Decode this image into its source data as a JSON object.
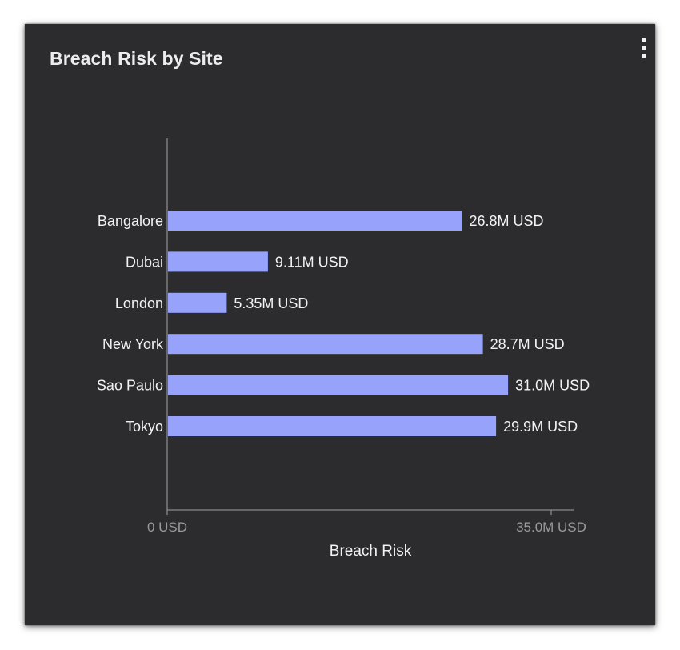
{
  "card": {
    "title": "Breach Risk by Site",
    "menu_icon": "more-vertical-icon"
  },
  "colors": {
    "background": "#2c2c2e",
    "bar": "#97a3fb",
    "axis": "#8a8a8e",
    "text": "#f2f2f2",
    "tick_text": "#9a9a9e"
  },
  "chart_data": {
    "type": "bar",
    "orientation": "horizontal",
    "title": "Breach Risk by Site",
    "categories": [
      "Bangalore",
      "Dubai",
      "London",
      "New York",
      "Sao Paulo",
      "Tokyo"
    ],
    "values": [
      26.8,
      9.11,
      5.35,
      28.7,
      31.0,
      29.9
    ],
    "value_labels": [
      "26.8M USD",
      "9.11M USD",
      "5.35M USD",
      "28.7M USD",
      "31.0M USD",
      "29.9M USD"
    ],
    "unit": "M USD",
    "xlabel": "Breach Risk",
    "ylabel": "",
    "xlim": [
      0,
      35.0
    ],
    "x_ticks": [
      0,
      35.0
    ],
    "x_tick_labels": [
      "0 USD",
      "35.0M USD"
    ],
    "grid": false,
    "legend": "none"
  }
}
